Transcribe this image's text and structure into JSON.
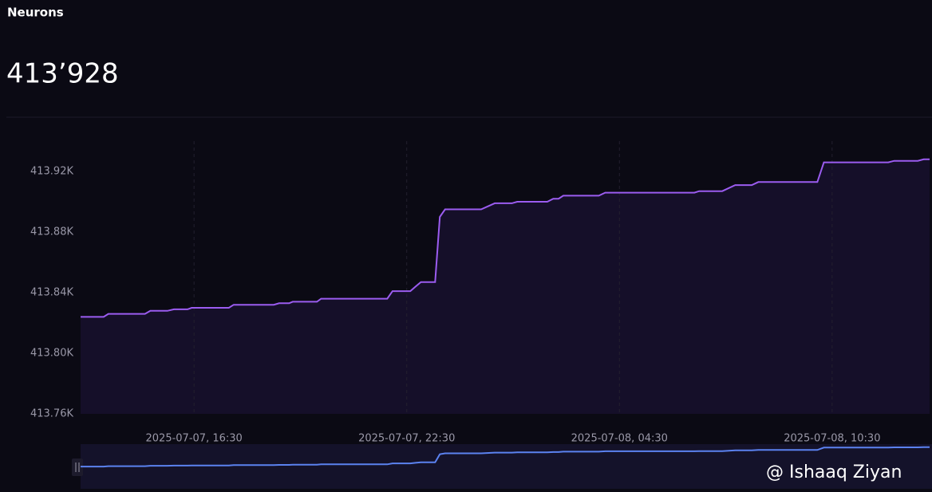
{
  "header": {
    "title": "Neurons",
    "value": "413’928"
  },
  "watermark": "@ Ishaaq Ziyan",
  "chart_data": {
    "type": "line",
    "x": [
      "2025-07-07T13:18",
      "2025-07-07T13:57",
      "2025-07-07T14:05",
      "2025-07-07T15:07",
      "2025-07-07T15:16",
      "2025-07-07T15:45",
      "2025-07-07T15:56",
      "2025-07-07T16:19",
      "2025-07-07T16:26",
      "2025-07-07T17:29",
      "2025-07-07T17:37",
      "2025-07-07T18:45",
      "2025-07-07T18:54",
      "2025-07-07T19:11",
      "2025-07-07T19:17",
      "2025-07-07T19:58",
      "2025-07-07T20:05",
      "2025-07-07T21:57",
      "2025-07-07T22:06",
      "2025-07-07T22:36",
      "2025-07-07T22:45",
      "2025-07-07T22:54",
      "2025-07-07T23:18",
      "2025-07-07T23:26",
      "2025-07-07T23:35",
      "2025-07-08T00:36",
      "2025-07-08T00:59",
      "2025-07-08T01:28",
      "2025-07-08T01:37",
      "2025-07-08T02:28",
      "2025-07-08T02:38",
      "2025-07-08T02:47",
      "2025-07-08T02:55",
      "2025-07-08T03:55",
      "2025-07-08T04:06",
      "2025-07-08T06:37",
      "2025-07-08T06:45",
      "2025-07-08T07:24",
      "2025-07-08T07:46",
      "2025-07-08T08:14",
      "2025-07-08T08:25",
      "2025-07-08T10:05",
      "2025-07-08T10:16",
      "2025-07-08T12:05",
      "2025-07-08T12:15",
      "2025-07-08T12:55",
      "2025-07-08T13:05",
      "2025-07-08T13:15"
    ],
    "series": [
      {
        "color": "#9b5cf0",
        "navigator_color": "#5b82f0",
        "values": [
          413824,
          413824,
          413826,
          413826,
          413828,
          413828,
          413829,
          413829,
          413830,
          413830,
          413832,
          413832,
          413833,
          413833,
          413834,
          413834,
          413836,
          413836,
          413841,
          413841,
          413844,
          413847,
          413847,
          413890,
          413895,
          413895,
          413899,
          413899,
          413900,
          413900,
          413902,
          413902,
          413904,
          413904,
          413906,
          413906,
          413907,
          413907,
          413911,
          413911,
          413913,
          413913,
          413926,
          413926,
          413927,
          413927,
          413928,
          413928
        ]
      }
    ],
    "xlim": [
      "2025-07-07T13:18",
      "2025-07-08T13:15"
    ],
    "xticks": [
      {
        "value": "2025-07-07T16:30",
        "label": "2025-07-07, 16:30"
      },
      {
        "value": "2025-07-07T22:30",
        "label": "2025-07-07, 22:30"
      },
      {
        "value": "2025-07-08T04:30",
        "label": "2025-07-08, 04:30"
      },
      {
        "value": "2025-07-08T10:30",
        "label": "2025-07-08, 10:30"
      }
    ],
    "ylim": [
      413760,
      413940
    ],
    "yticks": [
      {
        "value": 413760,
        "label": "413.76K"
      },
      {
        "value": 413800,
        "label": "413.80K"
      },
      {
        "value": 413840,
        "label": "413.84K"
      },
      {
        "value": 413880,
        "label": "413.88K"
      },
      {
        "value": 413920,
        "label": "413.92K"
      }
    ],
    "grid": true
  }
}
